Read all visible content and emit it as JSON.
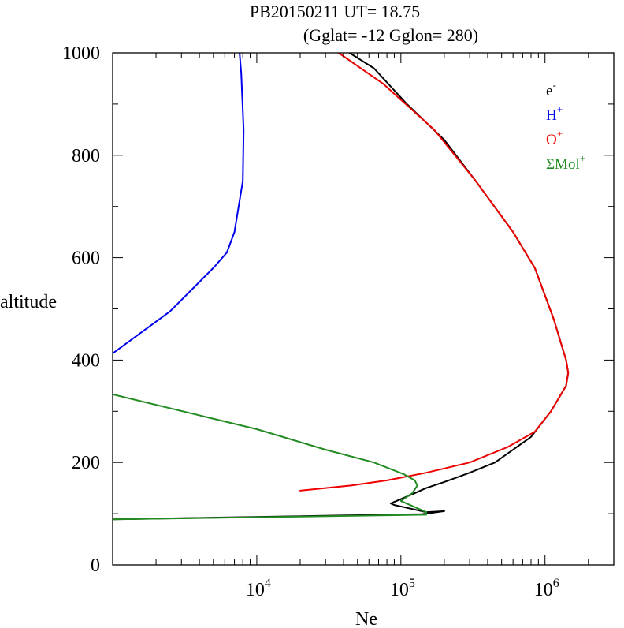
{
  "chart_data": {
    "type": "line",
    "title": "PB20150211   UT=  18.75",
    "subtitle": "(Gglat= -12   Gglon=  280)",
    "xlabel": "Ne",
    "ylabel": "altitude",
    "xscale": "log",
    "xlim": [
      1000,
      3000000
    ],
    "ylim": [
      0,
      1000
    ],
    "yticks": [
      0,
      200,
      400,
      600,
      800,
      1000
    ],
    "xticks_major": [
      {
        "value": 10000,
        "base": "10",
        "exp": "4"
      },
      {
        "value": 100000,
        "base": "10",
        "exp": "5"
      },
      {
        "value": 1000000,
        "base": "10",
        "exp": "6"
      }
    ],
    "legend_position": "top-right",
    "series": [
      {
        "name": "e",
        "sup": "-",
        "color": "#000000",
        "points": [
          [
            1000,
            89
          ],
          [
            140000,
            99
          ],
          [
            200000,
            105
          ],
          [
            150000,
            103
          ],
          [
            90000,
            117
          ],
          [
            85000,
            120
          ],
          [
            120000,
            138
          ],
          [
            150000,
            150
          ],
          [
            200000,
            162
          ],
          [
            240000,
            170
          ],
          [
            300000,
            180
          ],
          [
            450000,
            200
          ],
          [
            800000,
            250
          ],
          [
            1100000,
            300
          ],
          [
            1400000,
            350
          ],
          [
            1450000,
            375
          ],
          [
            1400000,
            400
          ],
          [
            1150000,
            480
          ],
          [
            850000,
            580
          ],
          [
            600000,
            650
          ],
          [
            330000,
            750
          ],
          [
            200000,
            830
          ],
          [
            110000,
            900
          ],
          [
            65000,
            970
          ],
          [
            44000,
            1000
          ]
        ]
      },
      {
        "name": "H",
        "sup": "+",
        "color": "#0000ee",
        "points": [
          [
            1000,
            413
          ],
          [
            2500,
            495
          ],
          [
            5000,
            580
          ],
          [
            6200,
            610
          ],
          [
            7000,
            650
          ],
          [
            8000,
            750
          ],
          [
            8100,
            850
          ],
          [
            7800,
            960
          ],
          [
            7600,
            1000
          ]
        ]
      },
      {
        "name": "O",
        "sup": "+",
        "color": "#ee0000",
        "points": [
          [
            20000,
            145
          ],
          [
            45000,
            155
          ],
          [
            80000,
            165
          ],
          [
            150000,
            180
          ],
          [
            300000,
            200
          ],
          [
            550000,
            230
          ],
          [
            850000,
            260
          ],
          [
            1100000,
            300
          ],
          [
            1400000,
            350
          ],
          [
            1450000,
            375
          ],
          [
            1400000,
            400
          ],
          [
            1150000,
            480
          ],
          [
            850000,
            580
          ],
          [
            600000,
            650
          ],
          [
            330000,
            750
          ],
          [
            170000,
            850
          ],
          [
            75000,
            940
          ],
          [
            37000,
            1000
          ]
        ]
      },
      {
        "name": "ΣMol",
        "sup": "+",
        "color": "#228b22",
        "points": [
          [
            1000,
            333
          ],
          [
            10000,
            265
          ],
          [
            30000,
            225
          ],
          [
            65000,
            200
          ],
          [
            105000,
            177
          ],
          [
            125000,
            165
          ],
          [
            130000,
            155
          ],
          [
            120000,
            140
          ],
          [
            100000,
            125
          ],
          [
            150000,
            103
          ],
          [
            150000,
            98
          ],
          [
            1000,
            89
          ]
        ]
      }
    ]
  }
}
